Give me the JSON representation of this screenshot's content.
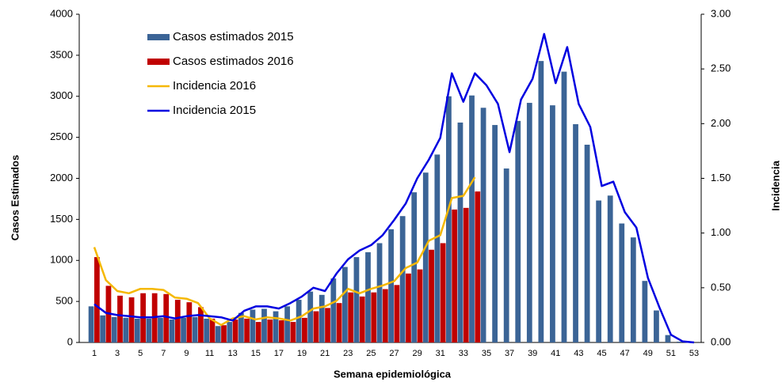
{
  "chart_data": {
    "type": "bar",
    "x_label": "Semana epidemiológica",
    "y_label": "Casos Estimados",
    "y2_label": "Incidencia",
    "categories": [
      "1",
      null,
      "3",
      null,
      "5",
      null,
      "7",
      null,
      "9",
      null,
      "11",
      null,
      "13",
      null,
      "15",
      null,
      "17",
      null,
      "19",
      null,
      "21",
      null,
      "23",
      null,
      "25",
      null,
      "27",
      null,
      "29",
      null,
      "31",
      null,
      "33",
      null,
      "35",
      null,
      "37",
      null,
      "39",
      null,
      "41",
      null,
      "43",
      null,
      "45",
      null,
      "47",
      null,
      "49",
      null,
      "51",
      null,
      "53"
    ],
    "ylim": [
      0,
      4000
    ],
    "yticks": [
      0,
      500,
      1000,
      1500,
      2000,
      2500,
      3000,
      3500,
      4000
    ],
    "y2lim": [
      0,
      3
    ],
    "y2ticks": [
      {
        "value": 0,
        "label": "0.00"
      },
      {
        "value": 0.5,
        "label": "0.50"
      },
      {
        "value": 1,
        "label": "1.00"
      },
      {
        "value": 1.5,
        "label": "1.50"
      },
      {
        "value": 2,
        "label": "2.00"
      },
      {
        "value": 2.5,
        "label": "2.50"
      },
      {
        "value": 3,
        "label": "3.00"
      }
    ],
    "series": [
      {
        "name": "Casos estimados 2015",
        "type": "bar",
        "color": "#3b6496",
        "values": [
          440,
          330,
          310,
          300,
          290,
          290,
          300,
          280,
          300,
          310,
          290,
          200,
          250,
          360,
          400,
          410,
          380,
          440,
          520,
          620,
          580,
          780,
          920,
          1040,
          1100,
          1210,
          1380,
          1540,
          1830,
          2070,
          2290,
          3000,
          2680,
          3010,
          2860,
          2650,
          2120,
          2700,
          2920,
          3430,
          2890,
          3300,
          2660,
          2410,
          1730,
          1790,
          1450,
          1280,
          750,
          390,
          90,
          10,
          0
        ]
      },
      {
        "name": "Casos estimados 2016",
        "type": "bar",
        "color": "#c00000",
        "values": [
          1040,
          690,
          570,
          550,
          600,
          600,
          590,
          520,
          490,
          430,
          290,
          210,
          280,
          290,
          250,
          280,
          270,
          250,
          300,
          380,
          420,
          480,
          610,
          560,
          610,
          650,
          700,
          840,
          890,
          1130,
          1210,
          1620,
          1640,
          1840,
          null,
          null,
          null,
          null,
          null,
          null,
          null,
          null,
          null,
          null,
          null,
          null,
          null,
          null,
          null,
          null,
          null,
          null,
          null
        ]
      },
      {
        "name": "Incidencia 2016",
        "type": "line",
        "axis": "y2",
        "color": "#f5b800",
        "values": [
          0.87,
          0.57,
          0.47,
          0.45,
          0.49,
          0.49,
          0.48,
          0.41,
          0.4,
          0.36,
          0.22,
          0.16,
          0.22,
          0.24,
          0.21,
          0.23,
          0.22,
          0.2,
          0.24,
          0.31,
          0.33,
          0.38,
          0.49,
          0.45,
          0.49,
          0.52,
          0.56,
          0.68,
          0.73,
          0.93,
          0.98,
          1.32,
          1.34,
          1.51,
          null,
          null,
          null,
          null,
          null,
          null,
          null,
          null,
          null,
          null,
          null,
          null,
          null,
          null,
          null,
          null,
          null,
          null,
          null
        ]
      },
      {
        "name": "Incidencia 2015",
        "type": "line",
        "axis": "y2",
        "color": "#0000e0",
        "values": [
          0.35,
          0.27,
          0.25,
          0.24,
          0.23,
          0.23,
          0.24,
          0.22,
          0.24,
          0.25,
          0.24,
          0.23,
          0.2,
          0.29,
          0.33,
          0.33,
          0.31,
          0.36,
          0.42,
          0.5,
          0.47,
          0.63,
          0.76,
          0.84,
          0.89,
          0.98,
          1.12,
          1.27,
          1.5,
          1.67,
          1.87,
          2.46,
          2.2,
          2.46,
          2.35,
          2.18,
          1.74,
          2.22,
          2.41,
          2.82,
          2.37,
          2.7,
          2.18,
          1.97,
          1.43,
          1.47,
          1.19,
          1.05,
          0.59,
          0.32,
          0.07,
          0.01,
          0.0
        ]
      }
    ]
  }
}
